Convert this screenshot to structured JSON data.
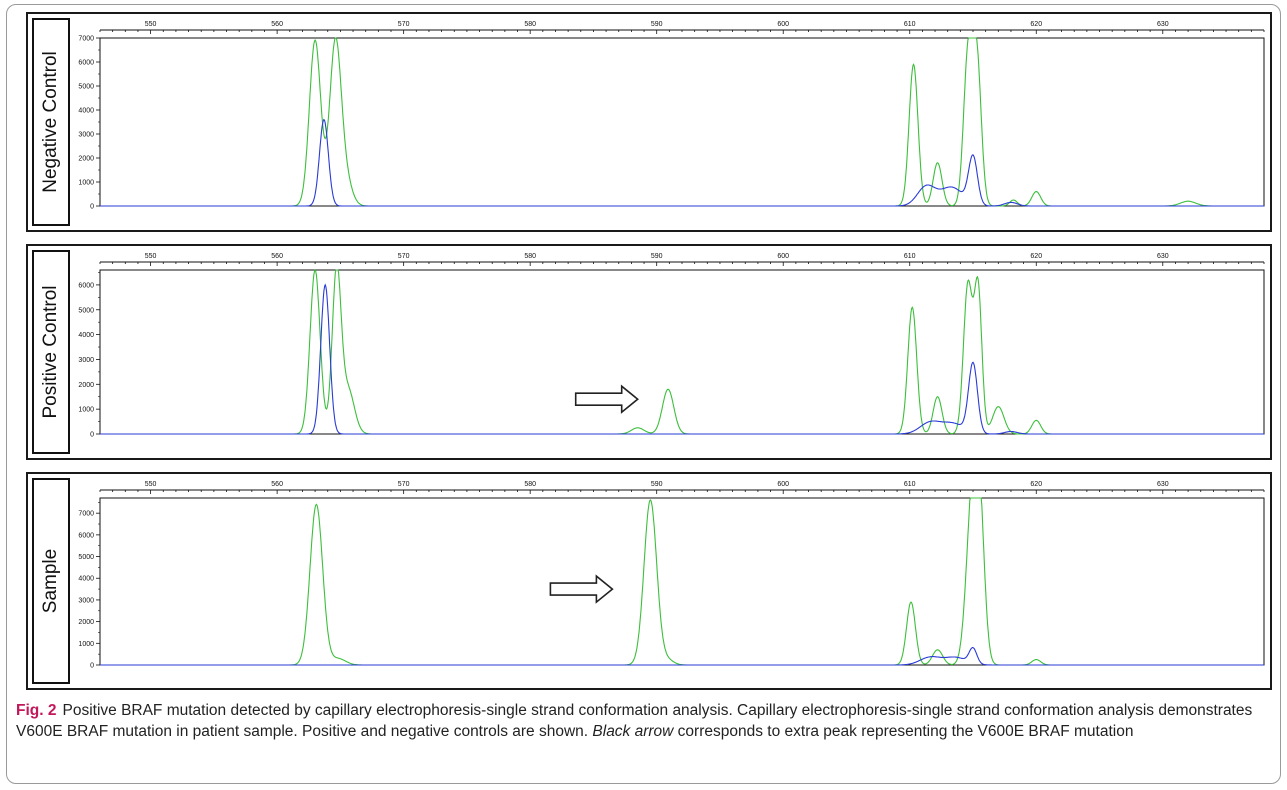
{
  "caption": {
    "figure_label": "Fig. 2",
    "text_1": "Positive BRAF mutation detected by capillary electrophoresis-single strand conformation analysis. Capillary electrophoresis-single strand conformation analysis demonstrates V600E BRAF mutation in patient sample. Positive and negative controls are shown. ",
    "italic": "Black arrow",
    "text_2": " corresponds to extra peak representing the V600E BRAF mutation"
  },
  "colors": {
    "green": "#3cbf3c",
    "blue": "#2a3bd6",
    "axis": "#111111",
    "arrow": "#222222"
  },
  "chart_data": [
    {
      "type": "line",
      "panel_label": "Negative Control",
      "x_ticks": [
        550,
        560,
        570,
        580,
        590,
        600,
        610,
        620,
        630
      ],
      "y_ticks": [
        0,
        1000,
        2000,
        3000,
        4000,
        5000,
        6000,
        7000
      ],
      "xlim": [
        546,
        638
      ],
      "ylim": [
        0,
        7000
      ],
      "grid": false,
      "arrow_x": null,
      "series": [
        {
          "color": "green",
          "peaks": [
            [
              563.0,
              6900,
              0.45
            ],
            [
              564.6,
              6700,
              0.45
            ],
            [
              565.4,
              1100,
              0.5
            ],
            [
              610.3,
              5900,
              0.35
            ],
            [
              612.2,
              1800,
              0.35
            ],
            [
              614.6,
              6100,
              0.35
            ],
            [
              615.3,
              6100,
              0.35
            ],
            [
              618.2,
              250,
              0.3
            ],
            [
              620.0,
              600,
              0.35
            ],
            [
              632.0,
              200,
              0.6
            ]
          ]
        },
        {
          "color": "blue",
          "peaks": [
            [
              563.7,
              3600,
              0.35
            ],
            [
              611.3,
              800,
              0.7
            ],
            [
              613.3,
              780,
              0.9
            ],
            [
              615.0,
              2000,
              0.35
            ],
            [
              618.0,
              150,
              0.5
            ]
          ]
        }
      ]
    },
    {
      "type": "line",
      "panel_label": "Positive Control",
      "x_ticks": [
        550,
        560,
        570,
        580,
        590,
        600,
        610,
        620,
        630
      ],
      "y_ticks": [
        0,
        1000,
        2000,
        3000,
        4000,
        5000,
        6000
      ],
      "xlim": [
        546,
        638
      ],
      "ylim": [
        0,
        6600
      ],
      "grid": false,
      "arrow_x": 588.5,
      "series": [
        {
          "color": "green",
          "peaks": [
            [
              563.0,
              6600,
              0.4
            ],
            [
              564.7,
              6500,
              0.35
            ],
            [
              565.6,
              1800,
              0.5
            ],
            [
              588.5,
              250,
              0.5
            ],
            [
              590.9,
              1800,
              0.45
            ],
            [
              610.2,
              5100,
              0.35
            ],
            [
              612.2,
              1500,
              0.35
            ],
            [
              614.6,
              6000,
              0.35
            ],
            [
              615.4,
              5800,
              0.3
            ],
            [
              617.0,
              1100,
              0.45
            ],
            [
              620.0,
              550,
              0.35
            ]
          ]
        },
        {
          "color": "blue",
          "peaks": [
            [
              563.8,
              6000,
              0.35
            ],
            [
              611.6,
              450,
              0.8
            ],
            [
              613.4,
              420,
              0.9
            ],
            [
              615.0,
              2800,
              0.35
            ],
            [
              618.0,
              100,
              0.5
            ]
          ]
        }
      ]
    },
    {
      "type": "line",
      "panel_label": "Sample",
      "x_ticks": [
        550,
        560,
        570,
        580,
        590,
        600,
        610,
        620,
        630
      ],
      "y_ticks": [
        0,
        1000,
        2000,
        3000,
        4000,
        5000,
        6000,
        7000
      ],
      "xlim": [
        546,
        638
      ],
      "ylim": [
        0,
        7700
      ],
      "grid": false,
      "arrow_x": 586.5,
      "series": [
        {
          "color": "green",
          "peaks": [
            [
              563.1,
              7400,
              0.5
            ],
            [
              564.8,
              300,
              0.6
            ],
            [
              589.5,
              7600,
              0.5
            ],
            [
              590.8,
              250,
              0.5
            ],
            [
              610.1,
              2900,
              0.35
            ],
            [
              612.2,
              700,
              0.4
            ],
            [
              614.9,
              6800,
              0.45
            ],
            [
              615.5,
              6700,
              0.4
            ],
            [
              620.0,
              250,
              0.35
            ]
          ]
        },
        {
          "color": "blue",
          "peaks": [
            [
              611.6,
              350,
              0.8
            ],
            [
              613.6,
              350,
              0.9
            ],
            [
              615.0,
              700,
              0.3
            ]
          ]
        }
      ]
    }
  ]
}
